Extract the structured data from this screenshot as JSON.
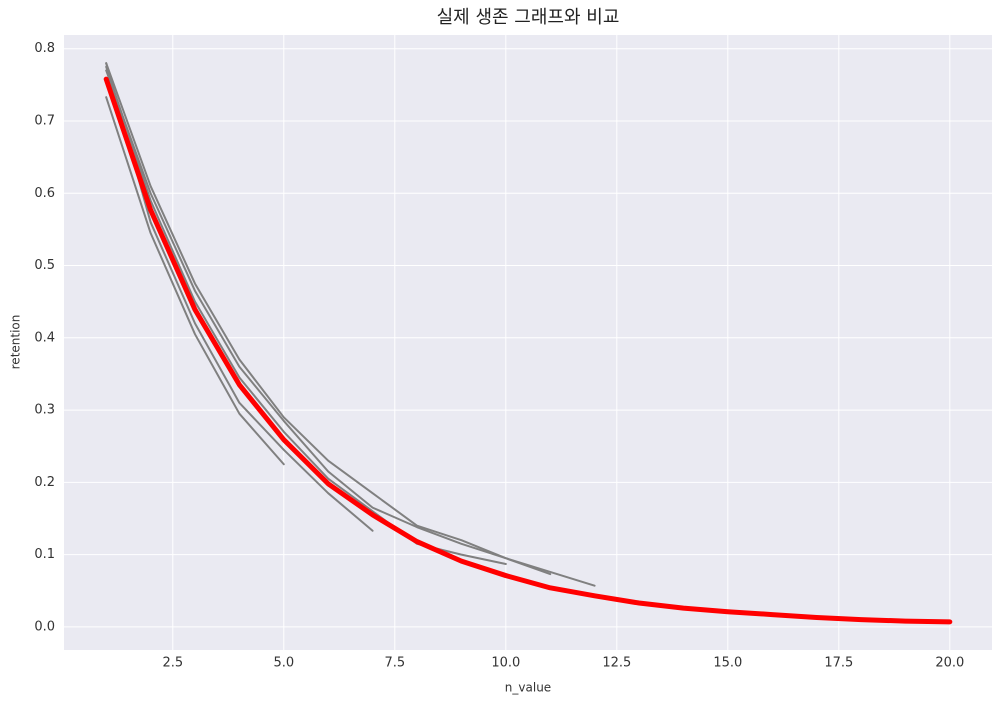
{
  "chart_data": {
    "type": "line",
    "title": "실제 생존 그래프와 비교",
    "x_label": "n_value",
    "y_label": "retention",
    "x": [
      1,
      2,
      3,
      4,
      5,
      6,
      7,
      8,
      9,
      10,
      11,
      12,
      13,
      14,
      15,
      16,
      17,
      18,
      19,
      20
    ],
    "series": [
      {
        "color": "#808080",
        "values": [
          0.733,
          0.545,
          0.405,
          0.295,
          0.225,
          null,
          null,
          null,
          null,
          null,
          null,
          null,
          null,
          null,
          null,
          null,
          null,
          null,
          null,
          null
        ]
      },
      {
        "color": "#808080",
        "values": [
          0.78,
          0.56,
          0.42,
          0.31,
          0.245,
          0.185,
          0.133,
          null,
          null,
          null,
          null,
          null,
          null,
          null,
          null,
          null,
          null,
          null,
          null,
          null
        ]
      },
      {
        "color": "#808080",
        "values": [
          0.775,
          0.59,
          0.45,
          0.345,
          0.27,
          0.205,
          0.16,
          0.115,
          0.1,
          0.087,
          null,
          null,
          null,
          null,
          null,
          null,
          null,
          null,
          null,
          null
        ]
      },
      {
        "color": "#808080",
        "values": [
          0.78,
          0.61,
          0.475,
          0.37,
          0.29,
          0.23,
          0.185,
          0.14,
          0.12,
          0.095,
          0.073,
          null,
          null,
          null,
          null,
          null,
          null,
          null,
          null,
          null
        ]
      },
      {
        "color": "#808080",
        "values": [
          0.77,
          0.6,
          0.465,
          0.36,
          0.285,
          0.215,
          0.165,
          0.138,
          0.115,
          0.095,
          0.076,
          0.057,
          null,
          null,
          null,
          null,
          null,
          null,
          null,
          null
        ]
      },
      {
        "color": "#ff0000",
        "values": [
          0.758,
          0.577,
          0.439,
          0.335,
          0.259,
          0.198,
          0.155,
          0.118,
          0.091,
          0.071,
          0.054,
          0.043,
          0.033,
          0.026,
          0.021,
          0.017,
          0.013,
          0.01,
          0.008,
          0.007
        ]
      }
    ],
    "xlim": [
      0.05,
      20.95
    ],
    "ylim": [
      -0.032,
      0.819
    ],
    "xticks": [
      2.5,
      {
        "value": 5,
        "label": "5.0"
      },
      7.5,
      {
        "value": 10,
        "label": "10.0"
      },
      12.5,
      {
        "value": 15,
        "label": "15.0"
      },
      17.5,
      {
        "value": 20,
        "label": "20.0"
      }
    ],
    "yticks": [
      {
        "value": 0,
        "label": "0.0"
      },
      0.1,
      0.2,
      0.3,
      0.4,
      0.5,
      0.6,
      0.7,
      0.8
    ],
    "grid": true,
    "background": "#eaeaf2"
  }
}
